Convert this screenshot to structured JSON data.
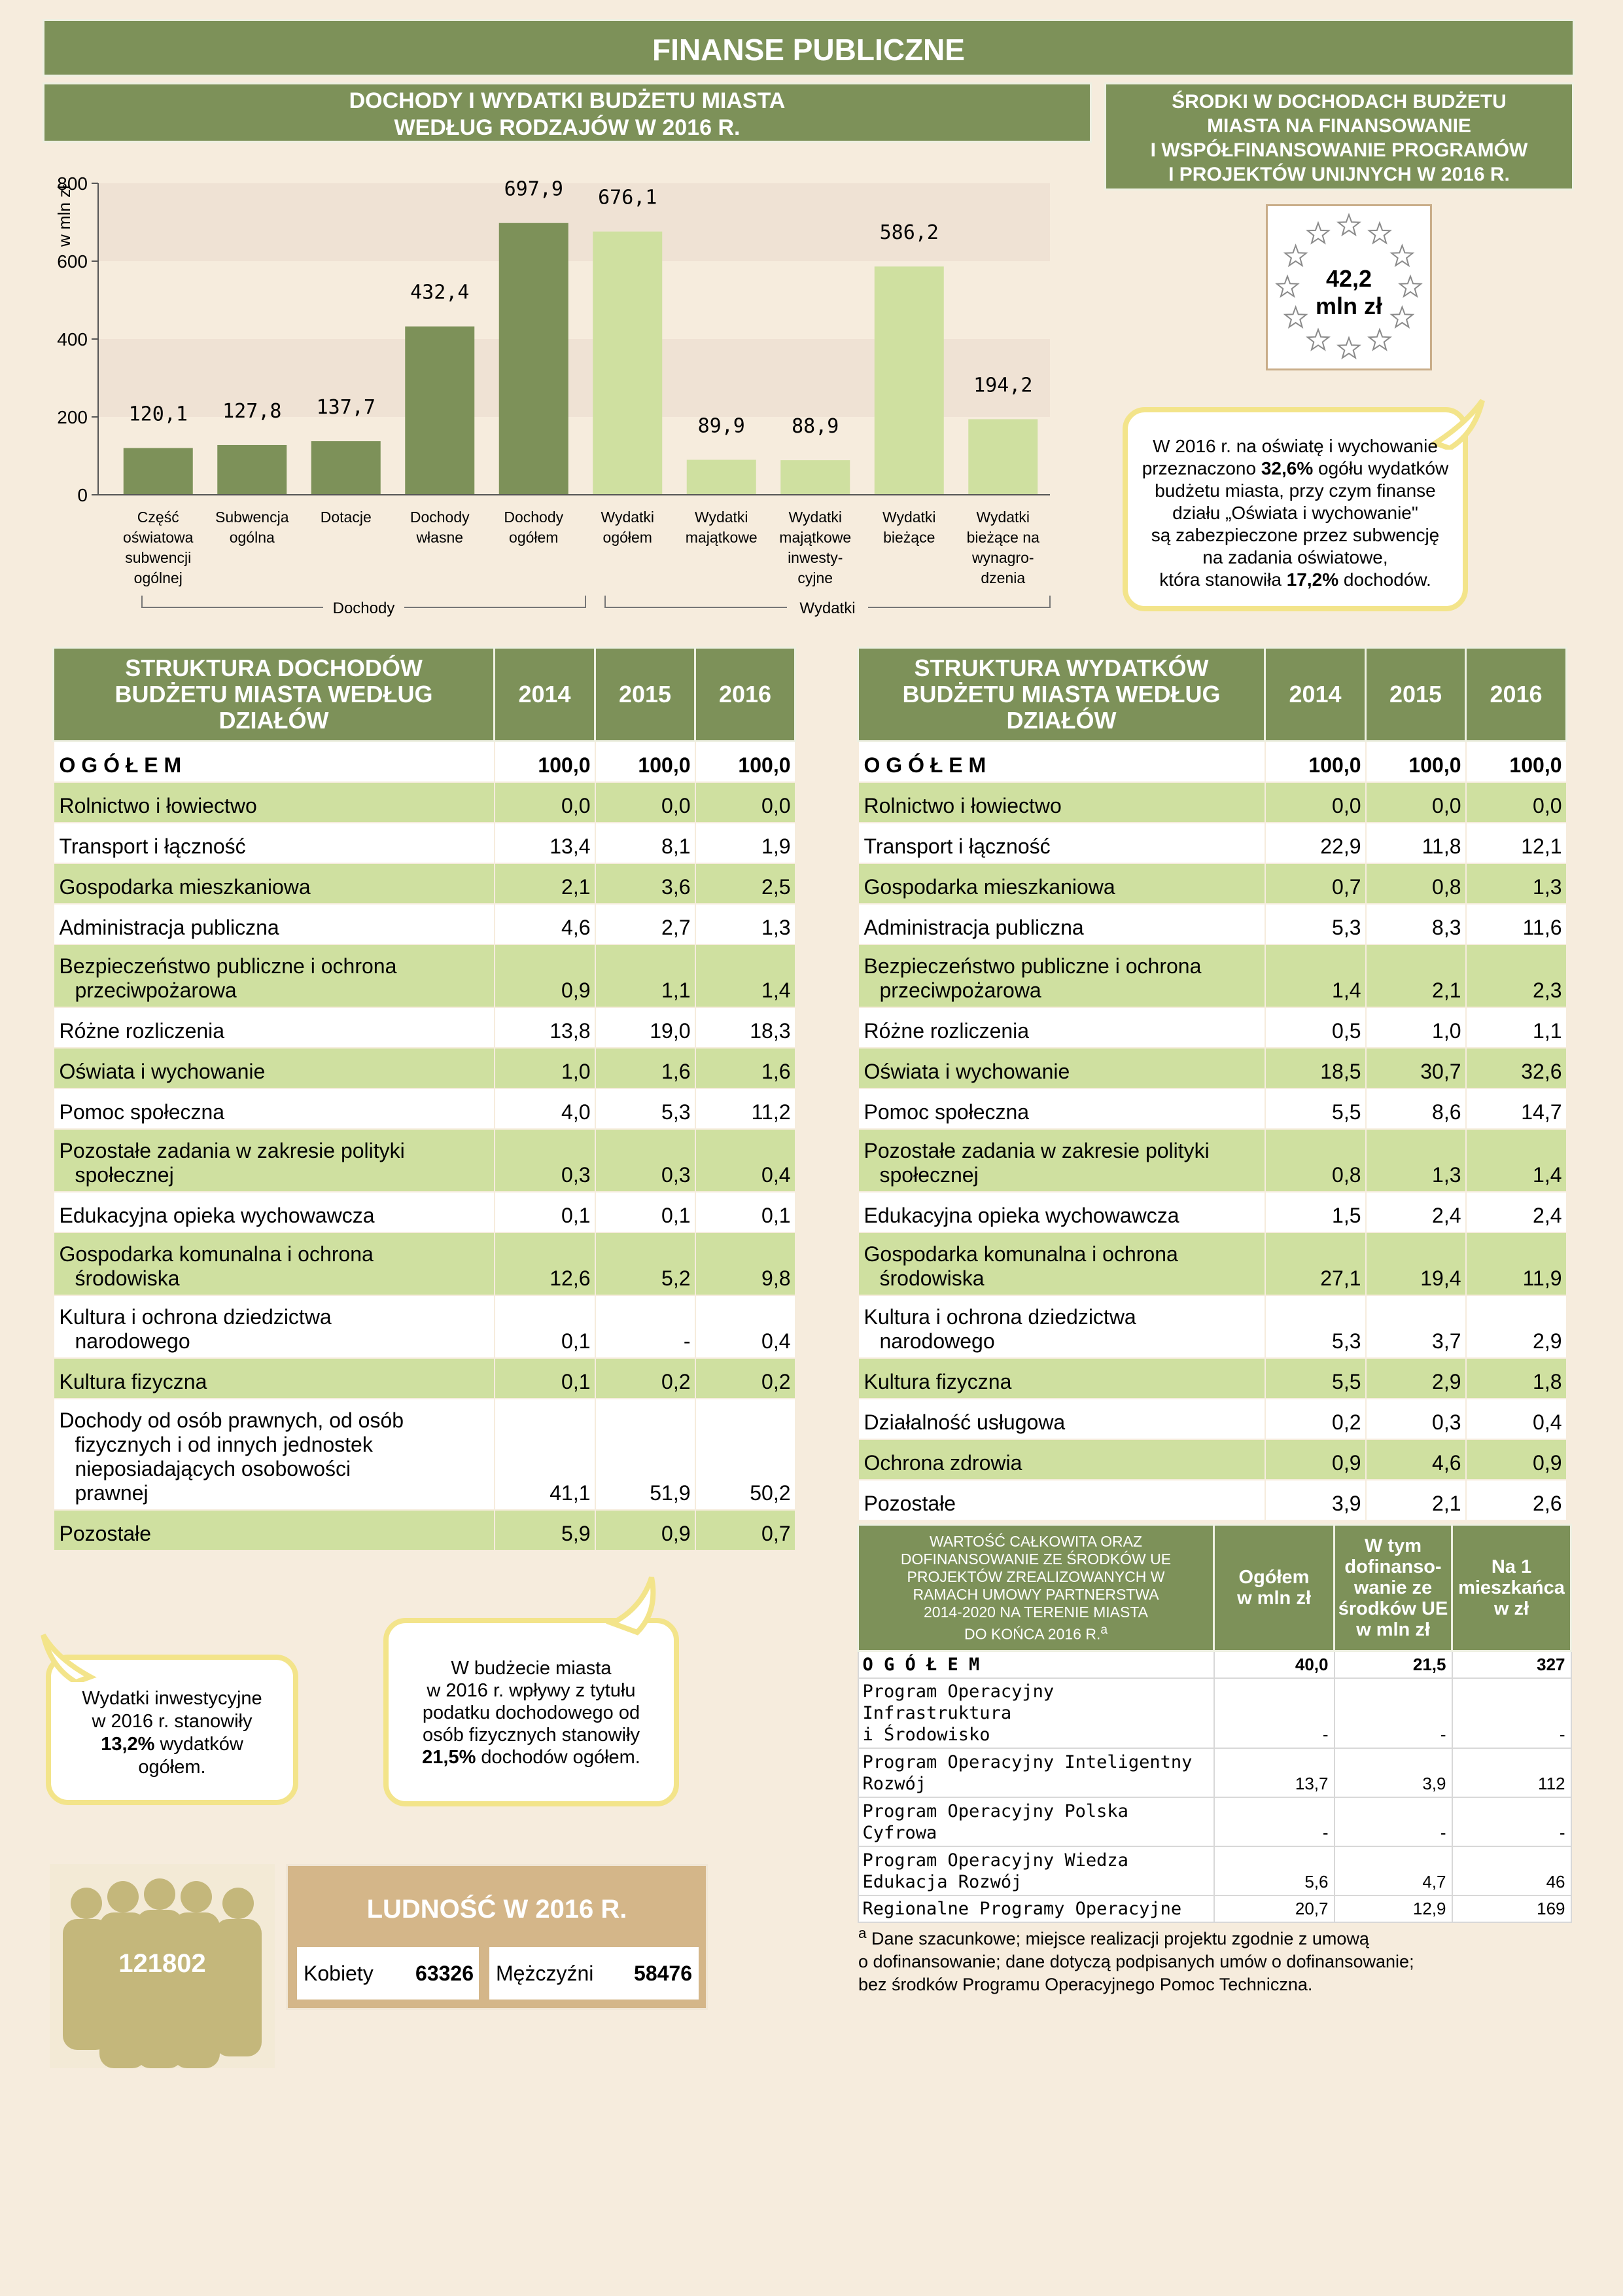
{
  "page_title": "FINANSE PUBLICZNE",
  "chart_section": {
    "title_line1": "DOCHODY I WYDATKI BUDŻETU MIASTA",
    "title_line2": "WEDŁUG RODZAJÓW W 2016 R."
  },
  "chart_data": {
    "type": "bar",
    "ylabel": "w mln zł",
    "ylim": [
      0,
      800
    ],
    "yticks": [
      "0",
      "200",
      "400",
      "600",
      "800"
    ],
    "categories": [
      [
        "Część",
        "oświatowa",
        "subwencji",
        "ogólnej"
      ],
      [
        "Subwencja",
        "ogólna"
      ],
      [
        "Dotacje"
      ],
      [
        "Dochody",
        "własne"
      ],
      [
        "Dochody",
        "ogółem"
      ],
      [
        "Wydatki",
        "ogółem"
      ],
      [
        "Wydatki",
        "majątkowe"
      ],
      [
        "Wydatki",
        "majątkowe",
        "inwesty-",
        "cyjne"
      ],
      [
        "Wydatki",
        "bieżące"
      ],
      [
        "Wydatki",
        "bieżące na",
        "wynagro-",
        "dzenia"
      ]
    ],
    "values": [
      120.1,
      127.8,
      137.7,
      432.4,
      697.9,
      676.1,
      89.9,
      88.9,
      586.2,
      194.2
    ],
    "value_labels": [
      "120,1",
      "127,8",
      "137,7",
      "432,4",
      "697,9",
      "676,1",
      "89,9",
      "88,9",
      "586,2",
      "194,2"
    ],
    "groups": [
      {
        "name": "Dochody",
        "color": "#7d9159"
      },
      {
        "name": "Wydatki",
        "color": "#cfe0a0"
      }
    ]
  },
  "eu_funds": {
    "title_lines": [
      "ŚRODKI W DOCHODACH BUDŻETU",
      "MIASTA NA FINANSOWANIE",
      "I WSPÓŁFINANSOWANIE PROGRAMÓW",
      "I PROJEKTÓW UNIJNYCH W 2016 R."
    ],
    "value_line1": "42,2",
    "value_line2": "mln zł"
  },
  "bubble_education": {
    "line1": "W 2016 r. na oświatę i wychowanie",
    "line2a": "przeznaczono ",
    "line2b": "32,6%",
    "line2c": " ogółu wydatków",
    "line3": "budżetu miasta, przy czym finanse",
    "line4": "działu „Oświata i wychowanie\"",
    "line5": "są zabezpieczone przez subwencję",
    "line6": "na zadania oświatowe,",
    "line7a": "która stanowiła ",
    "line7b": "17,2%",
    "line7c": " dochodów."
  },
  "income_table": {
    "header_lines": [
      "STRUKTURA DOCHODÓW",
      "BUDŻETU MIASTA WEDŁUG",
      "DZIAŁÓW"
    ],
    "years": [
      "2014",
      "2015",
      "2016"
    ],
    "rows": [
      {
        "label": "O G Ó Ł E M",
        "v": [
          "100,0",
          "100,0",
          "100,0"
        ]
      },
      {
        "label": "Rolnictwo i łowiectwo",
        "v": [
          "0,0",
          "0,0",
          "0,0"
        ]
      },
      {
        "label": "Transport i łączność",
        "v": [
          "13,4",
          "8,1",
          "1,9"
        ]
      },
      {
        "label": "Gospodarka mieszkaniowa",
        "v": [
          "2,1",
          "3,6",
          "2,5"
        ]
      },
      {
        "label": "Administracja publiczna",
        "v": [
          "4,6",
          "2,7",
          "1,3"
        ]
      },
      {
        "label": "Bezpieczeństwo publiczne i ochrona",
        "label2": "przeciwpożarowa",
        "v": [
          "0,9",
          "1,1",
          "1,4"
        ]
      },
      {
        "label": "Różne rozliczenia",
        "v": [
          "13,8",
          "19,0",
          "18,3"
        ]
      },
      {
        "label": "Oświata i wychowanie",
        "v": [
          "1,0",
          "1,6",
          "1,6"
        ]
      },
      {
        "label": "Pomoc społeczna",
        "v": [
          "4,0",
          "5,3",
          "11,2"
        ]
      },
      {
        "label": "Pozostałe zadania w zakresie polityki",
        "label2": "społecznej",
        "v": [
          "0,3",
          "0,3",
          "0,4"
        ]
      },
      {
        "label": "Edukacyjna opieka wychowawcza",
        "v": [
          "0,1",
          "0,1",
          "0,1"
        ]
      },
      {
        "label": "Gospodarka komunalna i ochrona",
        "label2": "środowiska",
        "v": [
          "12,6",
          "5,2",
          "9,8"
        ]
      },
      {
        "label": "Kultura i ochrona dziedzictwa",
        "label2": "narodowego",
        "v": [
          "0,1",
          "-",
          "0,4"
        ]
      },
      {
        "label": "Kultura fizyczna",
        "v": [
          "0,1",
          "0,2",
          "0,2"
        ]
      },
      {
        "label": "Dochody od osób prawnych, od osób",
        "label2": "fizycznych i od innych jednostek",
        "label3": "nieposiadających osobowości",
        "label4": "prawnej",
        "v": [
          "41,1",
          "51,9",
          "50,2"
        ]
      },
      {
        "label": "Pozostałe",
        "v": [
          "5,9",
          "0,9",
          "0,7"
        ]
      }
    ]
  },
  "expense_table": {
    "header_lines": [
      "STRUKTURA WYDATKÓW",
      "BUDŻETU MIASTA WEDŁUG",
      "DZIAŁÓW"
    ],
    "years": [
      "2014",
      "2015",
      "2016"
    ],
    "rows": [
      {
        "label": "O G Ó Ł E M",
        "v": [
          "100,0",
          "100,0",
          "100,0"
        ]
      },
      {
        "label": "Rolnictwo i łowiectwo",
        "v": [
          "0,0",
          "0,0",
          "0,0"
        ]
      },
      {
        "label": "Transport i łączność",
        "v": [
          "22,9",
          "11,8",
          "12,1"
        ]
      },
      {
        "label": "Gospodarka mieszkaniowa",
        "v": [
          "0,7",
          "0,8",
          "1,3"
        ]
      },
      {
        "label": "Administracja publiczna",
        "v": [
          "5,3",
          "8,3",
          "11,6"
        ]
      },
      {
        "label": "Bezpieczeństwo publiczne i ochrona",
        "label2": "przeciwpożarowa",
        "v": [
          "1,4",
          "2,1",
          "2,3"
        ]
      },
      {
        "label": "Różne rozliczenia",
        "v": [
          "0,5",
          "1,0",
          "1,1"
        ]
      },
      {
        "label": "Oświata i wychowanie",
        "v": [
          "18,5",
          "30,7",
          "32,6"
        ]
      },
      {
        "label": "Pomoc społeczna",
        "v": [
          "5,5",
          "8,6",
          "14,7"
        ]
      },
      {
        "label": "Pozostałe zadania w zakresie polityki",
        "label2": "społecznej",
        "v": [
          "0,8",
          "1,3",
          "1,4"
        ]
      },
      {
        "label": "Edukacyjna opieka wychowawcza",
        "v": [
          "1,5",
          "2,4",
          "2,4"
        ]
      },
      {
        "label": "Gospodarka komunalna i ochrona",
        "label2": "środowiska",
        "v": [
          "27,1",
          "19,4",
          "11,9"
        ]
      },
      {
        "label": "Kultura i ochrona dziedzictwa",
        "label2": "narodowego",
        "v": [
          "5,3",
          "3,7",
          "2,9"
        ]
      },
      {
        "label": "Kultura fizyczna",
        "v": [
          "5,5",
          "2,9",
          "1,8"
        ]
      },
      {
        "label": "Działalność usługowa",
        "v": [
          "0,2",
          "0,3",
          "0,4"
        ]
      },
      {
        "label": "Ochrona zdrowia",
        "v": [
          "0,9",
          "4,6",
          "0,9"
        ]
      },
      {
        "label": "Pozostałe",
        "v": [
          "3,9",
          "2,1",
          "2,6"
        ]
      }
    ]
  },
  "eu_projects_table": {
    "header_lines": [
      "WARTOŚĆ CAŁKOWITA ORAZ",
      "DOFINANSOWANIE ZE ŚRODKÓW UE",
      "PROJEKTÓW ZREALIZOWANYCH W",
      "RAMACH UMOWY PARTNERSTWA",
      "2014-2020 NA TERENIE MIASTA",
      "DO KOŃCA 2016 R."
    ],
    "header_sup": "a",
    "col1_lines": [
      "Ogółem",
      "w mln zł"
    ],
    "col2_lines": [
      "W tym",
      "dofinanso-",
      "wanie ze",
      "środków UE",
      "w mln zł"
    ],
    "col3_lines": [
      "Na 1",
      "mieszkańca",
      "w zł"
    ],
    "rows": [
      {
        "l1": "O G Ó Ł E M",
        "v": [
          "40,0",
          "21,5",
          "327"
        ]
      },
      {
        "l1": "Program Operacyjny Infrastruktura",
        "l2": "i Środowisko",
        "v": [
          "-",
          "-",
          "-"
        ]
      },
      {
        "l1": "Program Operacyjny Inteligentny",
        "l2": "Rozwój",
        "v": [
          "13,7",
          "3,9",
          "112"
        ]
      },
      {
        "l1": "Program Operacyjny Polska",
        "l2": "Cyfrowa",
        "v": [
          "-",
          "-",
          "-"
        ]
      },
      {
        "l1": "Program Operacyjny Wiedza",
        "l2": "Edukacja Rozwój",
        "v": [
          "5,6",
          "4,7",
          "46"
        ]
      },
      {
        "l1": "Regionalne Programy Operacyjne",
        "v": [
          "20,7",
          "12,9",
          "169"
        ]
      }
    ]
  },
  "footnote": {
    "mark": "a",
    "line1": "Dane szacunkowe; miejsce realizacji projektu zgodnie z umową",
    "line2": "o dofinansowanie; dane dotyczą podpisanych umów o dofinansowanie;",
    "line3": "bez środków Programu Operacyjnego Pomoc Techniczna."
  },
  "bubble_invest": {
    "line1": "Wydatki inwestycyjne",
    "line2": "w 2016 r. stanowiły",
    "line3b": "13,2%",
    "line3c": " wydatków",
    "line4": "ogółem."
  },
  "bubble_tax": {
    "line1": "W budżecie miasta",
    "line2": "w 2016 r. wpływy z tytułu",
    "line3": "podatku dochodowego od",
    "line4": "osób fizycznych stanowiły",
    "line5b": "21,5%",
    "line5c": " dochodów ogółem."
  },
  "population": {
    "total": "121802",
    "title": "LUDNOŚĆ W 2016  R.",
    "women_label": "Kobiety",
    "women_value": "63326",
    "men_label": "Mężczyźni",
    "men_value": "58476"
  }
}
